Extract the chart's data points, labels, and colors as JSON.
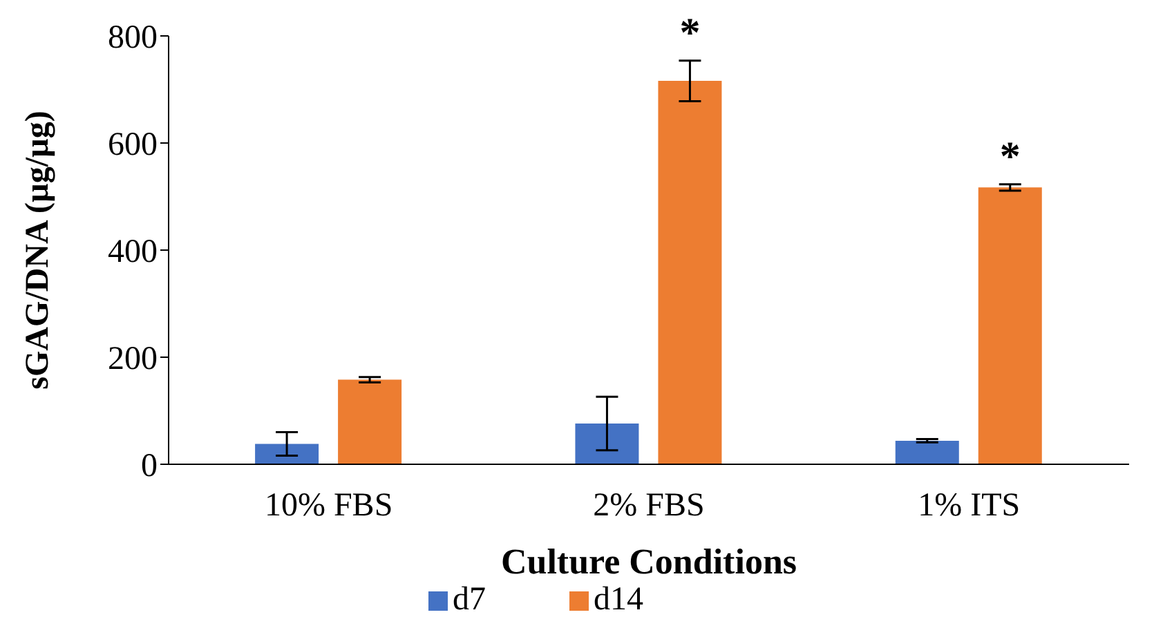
{
  "chart_data": {
    "type": "bar",
    "xlabel": "Culture Conditions",
    "ylabel": "sGAG/DNA (µg/µg)",
    "categories": [
      "10% FBS",
      "2% FBS",
      "1% ITS"
    ],
    "series": [
      {
        "name": "d7",
        "color": "#4472c4",
        "values": [
          38,
          76,
          44
        ],
        "errors": [
          22,
          50,
          3
        ]
      },
      {
        "name": "d14",
        "color": "#ed7d31",
        "values": [
          158,
          716,
          517
        ],
        "errors": [
          5,
          38,
          6
        ],
        "value_labels": [
          null,
          "*",
          "*"
        ]
      }
    ],
    "ylim": [
      0,
      800
    ],
    "yticks": [
      0,
      200,
      400,
      600,
      800
    ],
    "grid": false,
    "legend": "bottom"
  }
}
